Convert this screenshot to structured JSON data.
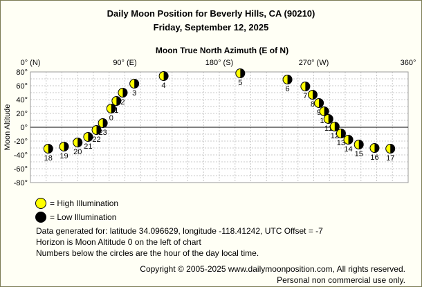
{
  "header": {
    "title": "Daily Moon Position for Beverly Hills, CA (90210)",
    "subtitle": "Friday, September 12, 2025"
  },
  "chart_data": {
    "type": "scatter",
    "title": "Moon True North Azimuth (E of N)",
    "xlabel": "Moon True North Azimuth (E of N)",
    "ylabel": "Moon Altitude",
    "xlim": [
      0,
      360
    ],
    "ylim": [
      -80,
      80
    ],
    "grid": true,
    "x_ticks": [
      {
        "value": 0,
        "label": "0° (N)"
      },
      {
        "value": 90,
        "label": "90° (E)"
      },
      {
        "value": 180,
        "label": "180° (S)"
      },
      {
        "value": 270,
        "label": "270° (W)"
      },
      {
        "value": 360,
        "label": "360°"
      }
    ],
    "y_ticks": [
      {
        "value": 80,
        "label": "80°"
      },
      {
        "value": 60,
        "label": "60°"
      },
      {
        "value": 40,
        "label": "40°"
      },
      {
        "value": 20,
        "label": "20°"
      },
      {
        "value": 0,
        "label": "0°"
      },
      {
        "value": -20,
        "label": "-20°"
      },
      {
        "value": -40,
        "label": "-40°"
      },
      {
        "value": -60,
        "label": "-60°"
      },
      {
        "value": -80,
        "label": "-80°"
      }
    ],
    "points": [
      {
        "hour": "0",
        "az": 77,
        "alt": 27
      },
      {
        "hour": "1",
        "az": 82,
        "alt": 38
      },
      {
        "hour": "2",
        "az": 88,
        "alt": 50
      },
      {
        "hour": "3",
        "az": 99,
        "alt": 63
      },
      {
        "hour": "4",
        "az": 127,
        "alt": 74
      },
      {
        "hour": "5",
        "az": 200,
        "alt": 78
      },
      {
        "hour": "6",
        "az": 245,
        "alt": 69
      },
      {
        "hour": "7",
        "az": 262,
        "alt": 59
      },
      {
        "hour": "8",
        "az": 269,
        "alt": 47
      },
      {
        "hour": "9",
        "az": 275,
        "alt": 35
      },
      {
        "hour": "10",
        "az": 280,
        "alt": 23
      },
      {
        "hour": "11",
        "az": 284,
        "alt": 12
      },
      {
        "hour": "12",
        "az": 290,
        "alt": 1
      },
      {
        "hour": "13",
        "az": 296,
        "alt": -9
      },
      {
        "hour": "14",
        "az": 303,
        "alt": -18
      },
      {
        "hour": "15",
        "az": 313,
        "alt": -25
      },
      {
        "hour": "16",
        "az": 328,
        "alt": -30
      },
      {
        "hour": "17",
        "az": 343,
        "alt": -31
      },
      {
        "hour": "18",
        "az": 17,
        "alt": -31
      },
      {
        "hour": "19",
        "az": 32,
        "alt": -28
      },
      {
        "hour": "20",
        "az": 45,
        "alt": -22
      },
      {
        "hour": "21",
        "az": 55,
        "alt": -14
      },
      {
        "hour": "22",
        "az": 63,
        "alt": -4
      },
      {
        "hour": "23",
        "az": 69,
        "alt": 6
      }
    ]
  },
  "legend": {
    "high": {
      "label": "= High Illumination",
      "color": "#ffff00"
    },
    "low": {
      "label": "= Low Illumination",
      "color": "#000000"
    }
  },
  "info": {
    "line1": "Data generated for: latitude 34.096629, longitude -118.41242, UTC Offset = -7",
    "line2": "Horizon is Moon Altitude 0 on the left of chart",
    "line3": "Numbers below the circles are the hour of the day local time."
  },
  "footer": {
    "copyright": "Copyright © 2005-2025 www.dailymoonposition.com, All rights reserved.",
    "personal": "Personal non commercial use only."
  }
}
